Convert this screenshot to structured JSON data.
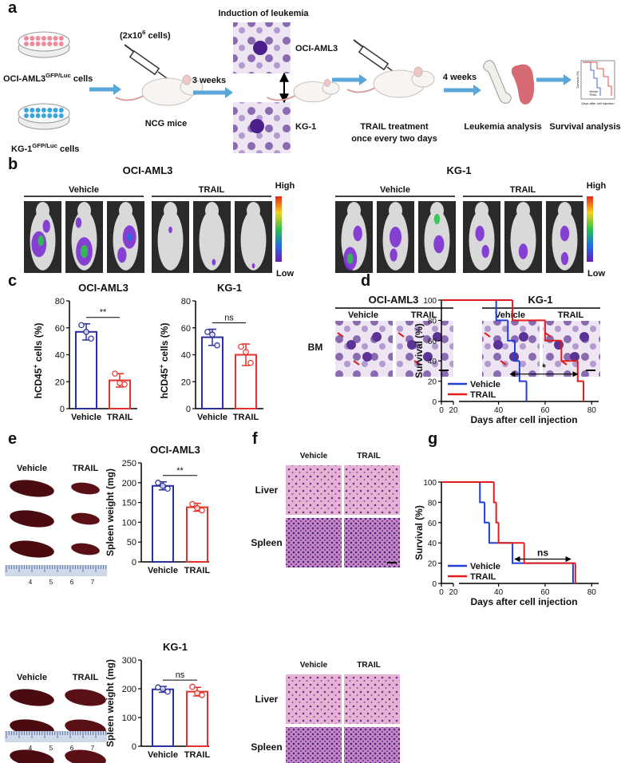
{
  "panel_labels": [
    "a",
    "b",
    "c",
    "d",
    "e",
    "f",
    "g"
  ],
  "schematic": {
    "cell_lines": [
      {
        "name": "OCI-AML3",
        "sup": "GFP/Luc",
        "suffix": " cells"
      },
      {
        "name": "KG-1",
        "sup": "GFP/Luc",
        "suffix": " cells"
      }
    ],
    "dose": {
      "pre": "(2x10",
      "sup": "6",
      "post": " cells)"
    },
    "mice": "NCG mice",
    "wait1": "3 weeks",
    "induction": "Induction of leukemia",
    "induction_lines": [
      "OCI-AML3",
      "KG-1"
    ],
    "treatment": [
      "TRAIL treatment",
      "once every two days"
    ],
    "wait2": "4 weeks",
    "analysis": [
      "Leukemia analysis",
      "Survival analysis"
    ],
    "thumbnail": {
      "ylabel": "Survival (%)",
      "xlabel": "Days after cell injection",
      "legend": [
        "Vehicle",
        "TRAIL"
      ]
    }
  },
  "imaging": [
    {
      "title": "OCI-AML3",
      "groups": [
        "Vehicle",
        "TRAIL"
      ]
    },
    {
      "title": "KG-1",
      "groups": [
        "Vehicle",
        "TRAIL"
      ]
    }
  ],
  "imaging_scale": [
    "High",
    "Low"
  ],
  "cytology": {
    "tissue": "BM",
    "panels": [
      {
        "title": "OCI-AML3",
        "groups": [
          "Vehicle",
          "TRAIL"
        ]
      },
      {
        "title": "KG-1",
        "groups": [
          "Vehicle",
          "TRAIL"
        ]
      }
    ]
  },
  "spleen_photos": [
    {
      "groups": [
        "Vehicle",
        "TRAIL"
      ],
      "ruler": [
        "4",
        "5",
        "6",
        "7"
      ]
    },
    {
      "groups": [
        "Vehicle",
        "TRAIL"
      ],
      "ruler": [
        "4",
        "5",
        "6",
        "7"
      ]
    }
  ],
  "histology": [
    {
      "groups": [
        "Vehicle",
        "TRAIL"
      ],
      "tissues": [
        "Liver",
        "Spleen"
      ]
    },
    {
      "groups": [
        "Vehicle",
        "TRAIL"
      ],
      "tissues": [
        "Liver",
        "Spleen"
      ]
    }
  ],
  "chart_data": [
    {
      "type": "bar",
      "title": "OCI-AML3",
      "ylabel": "hCD45",
      "ylabel_sup": "+",
      "ylabel_rest": " cells (%)",
      "categories": [
        "Vehicle",
        "TRAIL"
      ],
      "values": [
        57,
        21
      ],
      "errors": [
        6,
        5
      ],
      "points": [
        [
          62,
          57,
          52
        ],
        [
          26,
          19,
          18
        ]
      ],
      "colors": [
        "#2b2f9e",
        "#e4312b"
      ],
      "ylim": [
        0,
        80
      ],
      "yticks": [
        0,
        20,
        40,
        60,
        80
      ],
      "significance": "**"
    },
    {
      "type": "bar",
      "title": "KG-1",
      "ylabel": "hCD45",
      "ylabel_sup": "+",
      "ylabel_rest": " cells (%)",
      "categories": [
        "Vehicle",
        "TRAIL"
      ],
      "values": [
        53,
        40
      ],
      "errors": [
        6,
        8
      ],
      "points": [
        [
          57,
          55,
          47
        ],
        [
          46,
          42,
          34
        ]
      ],
      "colors": [
        "#2b2f9e",
        "#e4312b"
      ],
      "ylim": [
        0,
        80
      ],
      "yticks": [
        0,
        20,
        40,
        60,
        80
      ],
      "significance": "ns"
    },
    {
      "type": "bar",
      "title": "OCI-AML3",
      "ylabel": "Spleen weight (mg)",
      "categories": [
        "Vehicle",
        "TRAIL"
      ],
      "values": [
        192,
        138
      ],
      "errors": [
        10,
        10
      ],
      "points": [
        [
          200,
          192,
          185
        ],
        [
          146,
          136,
          130
        ]
      ],
      "colors": [
        "#2b2f9e",
        "#e4312b"
      ],
      "ylim": [
        0,
        250
      ],
      "yticks": [
        0,
        50,
        100,
        150,
        200,
        250
      ],
      "significance": "**"
    },
    {
      "type": "bar",
      "title": "KG-1",
      "ylabel": "Spleen weight (mg)",
      "categories": [
        "Vehicle",
        "TRAIL"
      ],
      "values": [
        198,
        190
      ],
      "errors": [
        10,
        15
      ],
      "points": [
        [
          205,
          200,
          190
        ],
        [
          207,
          185,
          178
        ]
      ],
      "colors": [
        "#2b2f9e",
        "#e4312b"
      ],
      "ylim": [
        0,
        300
      ],
      "yticks": [
        0,
        100,
        200,
        300
      ],
      "significance": "ns"
    },
    {
      "type": "survival",
      "ylabel": "Survival (%)",
      "xlabel": "Days after cell injection",
      "ylim": [
        0,
        100
      ],
      "yticks": [
        0,
        20,
        40,
        60,
        80,
        100
      ],
      "xticks": [
        0,
        20,
        40,
        60,
        80
      ],
      "x_segments": [
        [
          0,
          20
        ],
        [
          23,
          83
        ]
      ],
      "series": [
        {
          "name": "Vehicle",
          "color": "#1f3fd6",
          "x": [
            0,
            39,
            44,
            47,
            49,
            52
          ],
          "values": [
            100,
            80,
            60,
            40,
            20,
            0
          ]
        },
        {
          "name": "TRAIL",
          "color": "#e11d1d",
          "x": [
            0,
            46,
            60,
            67,
            74,
            76.5
          ],
          "values": [
            100,
            80,
            60,
            40,
            20,
            0
          ]
        }
      ],
      "annotation": {
        "text": "*",
        "x": [
          45,
          74
        ],
        "y": 27
      }
    },
    {
      "type": "survival",
      "ylabel": "Survival (%)",
      "xlabel": "Days after cell injection",
      "ylim": [
        0,
        100
      ],
      "yticks": [
        0,
        20,
        40,
        60,
        80,
        100
      ],
      "xticks": [
        0,
        20,
        40,
        60,
        80
      ],
      "x_segments": [
        [
          0,
          20
        ],
        [
          23,
          83
        ]
      ],
      "series": [
        {
          "name": "Vehicle",
          "color": "#1f3fd6",
          "x": [
            0,
            32,
            34,
            36,
            46,
            72
          ],
          "values": [
            100,
            80,
            60,
            40,
            20,
            0
          ]
        },
        {
          "name": "TRAIL",
          "color": "#e11d1d",
          "x": [
            0,
            38,
            39,
            40,
            51,
            73
          ],
          "values": [
            100,
            80,
            60,
            40,
            20,
            0
          ]
        }
      ],
      "annotation": {
        "text": "ns",
        "x": [
          47,
          71
        ],
        "y": 24
      }
    }
  ]
}
